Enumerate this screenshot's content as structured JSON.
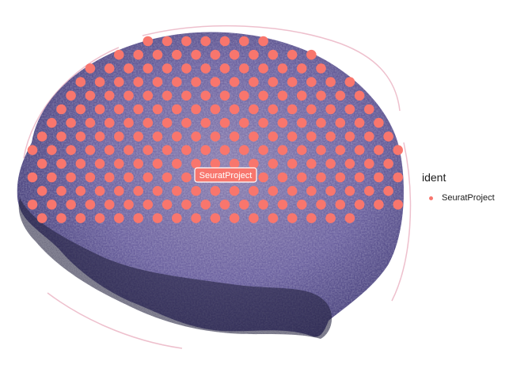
{
  "chart_data": {
    "type": "scatter",
    "title": "",
    "xlabel": "",
    "ylabel": "",
    "grid": false,
    "background": "tissue histology image (H&E stained section)",
    "legend": {
      "title": "ident",
      "position": "right",
      "entries": [
        {
          "label": "SeuratProject",
          "color": "#f8766d"
        }
      ]
    },
    "label_annotation": "SeuratProject",
    "series": [
      {
        "name": "SeuratProject",
        "color": "#f8766d",
        "spot_count": 231
      }
    ]
  }
}
